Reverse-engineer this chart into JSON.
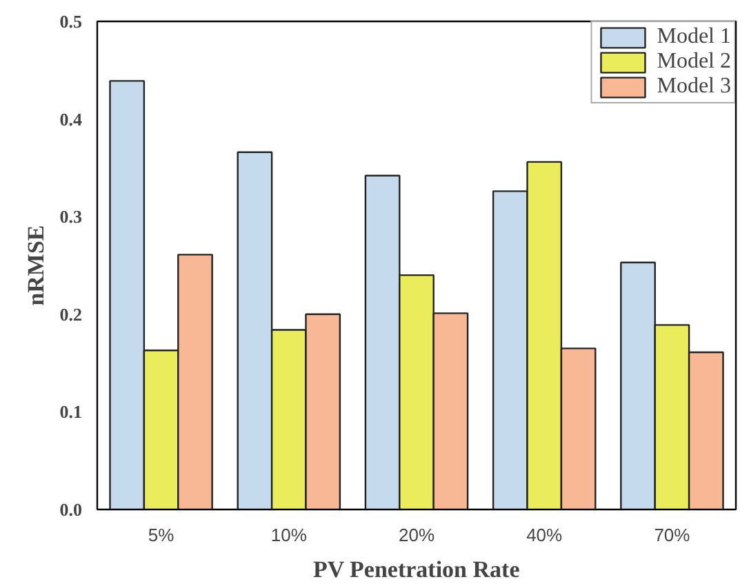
{
  "chart_data": {
    "type": "bar",
    "xlabel": "PV Penetration Rate",
    "ylabel": "nRMSE",
    "categories": [
      "5%",
      "10%",
      "20%",
      "40%",
      "70%"
    ],
    "series": [
      {
        "name": "Model 1",
        "color": "#c5daec",
        "values": [
          0.439,
          0.366,
          0.342,
          0.326,
          0.253
        ]
      },
      {
        "name": "Model 2",
        "color": "#eaec5c",
        "values": [
          0.163,
          0.184,
          0.24,
          0.356,
          0.189
        ]
      },
      {
        "name": "Model 3",
        "color": "#f8b896",
        "values": [
          0.261,
          0.2,
          0.201,
          0.165,
          0.161
        ]
      }
    ],
    "ylim": [
      0,
      0.5
    ],
    "yticks": [
      {
        "value": 0,
        "label": "0.0"
      },
      0.1,
      0.2,
      0.3,
      0.4,
      0.5
    ],
    "grid": false,
    "legend": "top right"
  }
}
